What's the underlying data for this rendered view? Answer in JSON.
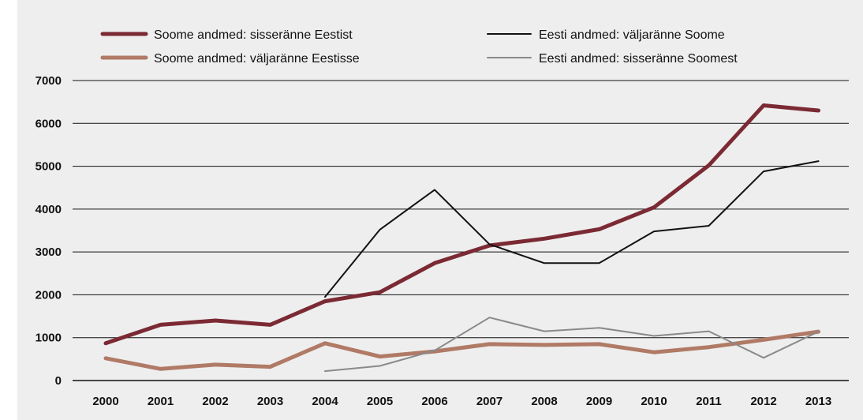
{
  "chart_data": {
    "type": "line",
    "title": "",
    "xlabel": "",
    "ylabel": "",
    "x": [
      "2000",
      "2001",
      "2002",
      "2003",
      "2004",
      "2005",
      "2006",
      "2007",
      "2008",
      "2009",
      "2010",
      "2011",
      "2012",
      "2013"
    ],
    "yticks": [
      "0",
      "1000",
      "2000",
      "3000",
      "4000",
      "5000",
      "6000",
      "7000"
    ],
    "ylim": [
      0,
      7000
    ],
    "grid": "horizontal",
    "legend_position": "top",
    "series": [
      {
        "name": "Soome andmed: sisseränne Eestist",
        "color": "#7b2a34",
        "width": "thick",
        "values": [
          870,
          1300,
          1400,
          1300,
          1850,
          2060,
          2740,
          3150,
          3310,
          3530,
          4040,
          5020,
          6420,
          6300
        ]
      },
      {
        "name": "Soome andmed: väljaränne Eestisse",
        "color": "#b07a66",
        "width": "thick",
        "values": [
          520,
          270,
          370,
          320,
          870,
          560,
          680,
          850,
          830,
          850,
          660,
          780,
          950,
          1140
        ]
      },
      {
        "name": "Eesti andmed: väljaränne Soome",
        "color": "#111111",
        "width": "thin",
        "values": [
          null,
          null,
          null,
          null,
          1950,
          3520,
          4450,
          3180,
          2740,
          2740,
          3480,
          3610,
          4880,
          5120
        ]
      },
      {
        "name": "Eesti andmed: sisseränne Soomest",
        "color": "#8a8a8a",
        "width": "thin",
        "values": [
          null,
          null,
          null,
          null,
          220,
          340,
          700,
          1470,
          1150,
          1230,
          1040,
          1150,
          530,
          1140
        ]
      }
    ]
  }
}
